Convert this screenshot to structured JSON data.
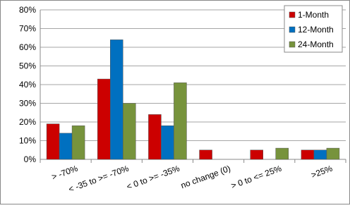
{
  "chart_data": {
    "type": "bar",
    "categories": [
      "> -70%",
      "< -35 to >= -70%",
      "< 0 to >= -35%",
      "no change (0)",
      "> 0 to <= 25%",
      ">25%"
    ],
    "series": [
      {
        "name": "1-Month",
        "color": "#cc0000",
        "values": [
          19,
          43,
          24,
          5,
          5,
          5
        ]
      },
      {
        "name": "12-Month",
        "color": "#0070c0",
        "values": [
          14,
          64,
          18,
          0,
          0,
          5
        ]
      },
      {
        "name": "24-Month",
        "color": "#77933c",
        "values": [
          18,
          30,
          41,
          0,
          6,
          6
        ]
      }
    ],
    "ylim": [
      0,
      80
    ],
    "yticks": [
      {
        "value": 0,
        "label": "0%"
      },
      {
        "value": 10,
        "label": "10%"
      },
      {
        "value": 20,
        "label": "20%"
      },
      {
        "value": 30,
        "label": "30%"
      },
      {
        "value": 40,
        "label": "40%"
      },
      {
        "value": 50,
        "label": "50%"
      },
      {
        "value": 60,
        "label": "60%"
      },
      {
        "value": 70,
        "label": "70%"
      },
      {
        "value": 80,
        "label": "80%"
      }
    ],
    "grid": true,
    "legend": "upper right"
  }
}
